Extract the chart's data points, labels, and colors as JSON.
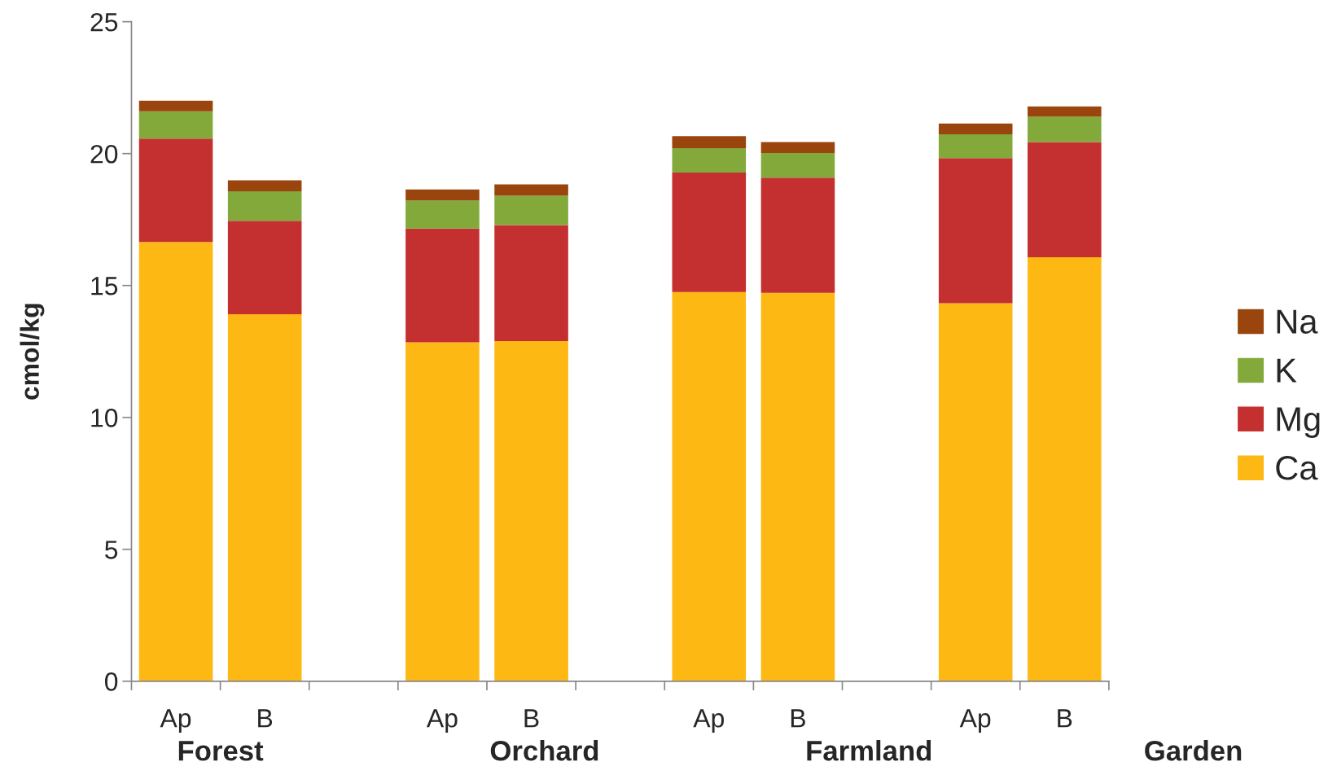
{
  "chart_data": {
    "type": "bar",
    "stacked": true,
    "ylabel": "cmol/kg",
    "categories": [
      "Ap",
      "B",
      null,
      "Ap",
      "B",
      null,
      "Ap",
      "B",
      null,
      "Ap",
      "B"
    ],
    "series": [
      {
        "name": "Ca",
        "color": "#fdb813",
        "values": [
          16.65,
          13.91,
          null,
          12.85,
          12.89,
          null,
          14.75,
          14.72,
          null,
          14.33,
          16.07
        ]
      },
      {
        "name": "Mg",
        "color": "#c4302f",
        "values": [
          3.92,
          3.54,
          null,
          4.31,
          4.4,
          null,
          4.53,
          4.37,
          null,
          5.5,
          4.37
        ]
      },
      {
        "name": "K",
        "color": "#82a93a",
        "values": [
          1.03,
          1.12,
          null,
          1.06,
          1.12,
          null,
          0.93,
          0.93,
          null,
          0.9,
          0.96
        ]
      },
      {
        "name": "Na",
        "color": "#9b450e",
        "values": [
          0.4,
          0.42,
          null,
          0.42,
          0.42,
          null,
          0.45,
          0.42,
          null,
          0.41,
          0.39
        ]
      }
    ],
    "annotations": [
      "Forest",
      "Orchard",
      "Farmland",
      "Garden"
    ],
    "ylim": [
      0,
      25
    ],
    "yticks": [
      0,
      5,
      10,
      15,
      20,
      25
    ],
    "grid": false,
    "legend": "right"
  }
}
